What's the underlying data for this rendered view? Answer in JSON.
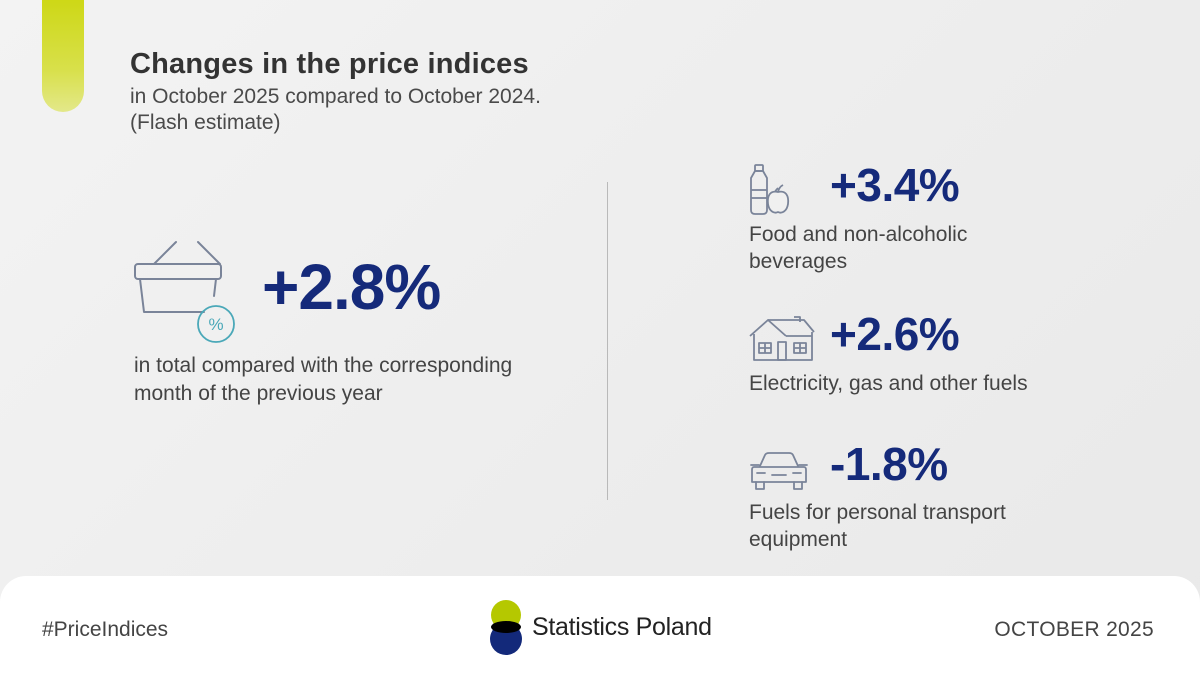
{
  "header": {
    "title": "Changes in the price indices",
    "subtitle_line1": "in October 2025 compared to October 2024.",
    "subtitle_line2": "(Flash estimate)"
  },
  "total": {
    "value": "+2.8%",
    "description": "in total compared with the corresponding month of the previous year",
    "icon": "shopping-basket-percent-icon"
  },
  "categories": [
    {
      "value": "+3.4%",
      "label": "Food and non-alcoholic beverages",
      "icon": "bottle-apple-icon"
    },
    {
      "value": "+2.6%",
      "label": "Electricity, gas and other fuels",
      "icon": "house-icon"
    },
    {
      "value": "-1.8%",
      "label": "Fuels for personal transport equipment",
      "icon": "car-icon"
    }
  ],
  "footer": {
    "hashtag": "#PriceIndices",
    "logo_text": "Statistics Poland",
    "date": "OCTOBER 2025"
  },
  "colors": {
    "accent": "#c9d400",
    "value": "#152a7a",
    "logo_green": "#b5c800",
    "logo_navy": "#13297a",
    "icon_stroke": "#7a8499",
    "icon_teal": "#4aa8b8"
  }
}
